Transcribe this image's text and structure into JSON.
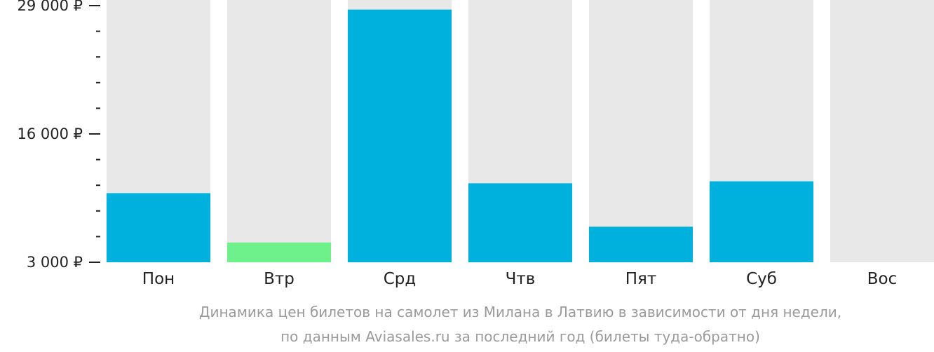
{
  "chart_data": {
    "type": "bar",
    "categories": [
      "Пон",
      "Втр",
      "Срд",
      "Чтв",
      "Пят",
      "Суб",
      "Вос"
    ],
    "values": [
      10000,
      5000,
      28600,
      11000,
      6600,
      11200,
      null
    ],
    "highlight_index": 1,
    "colors": {
      "bar": "#00b0dd",
      "highlight": "#6ef08a",
      "track": "#e8e8e8",
      "axis": "#222222"
    },
    "ylim": [
      3000,
      29000
    ],
    "yticks": [
      {
        "value": 3000,
        "label": "3 000 ₽"
      },
      {
        "value": 16000,
        "label": "16 000 ₽"
      },
      {
        "value": 29000,
        "label": "29 000 ₽"
      }
    ],
    "minor_ticks_per_interval": 4,
    "grid": false
  },
  "caption": {
    "line1": "Динамика цен билетов на самолет из Милана в Латвию в зависимости от дня недели,",
    "line2": "по данным Aviasales.ru за последний год (билеты туда-обратно)"
  }
}
